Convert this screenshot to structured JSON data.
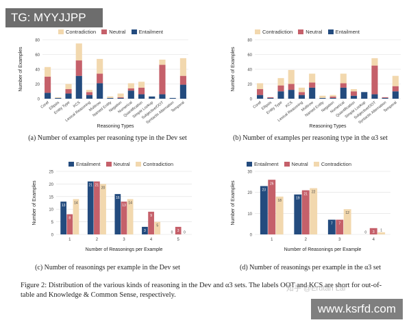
{
  "watermark_top": "TG: MYYJJPP",
  "watermark_bottom": "www.ksrfd.com",
  "credit": "知乎 @Erutan Lai",
  "colors": {
    "entailment": "#234b7e",
    "neutral": "#c5606a",
    "contradiction": "#f2d8ae"
  },
  "figure_caption": "Figure 2: Distribution of the various kinds of reasoning in the Dev and α3 sets. The labels OOT and KCS are short for out-of-table and Knowledge & Common Sense, respectively.",
  "chart_data": [
    {
      "type": "bar",
      "stacked": true,
      "caption": "(a) Number of examples per reasoning type in the Dev set",
      "xlabel": "Reasoning Types",
      "ylabel": "Number of Examples",
      "ylim": [
        0,
        80
      ],
      "yticks": [
        0,
        20,
        40,
        60,
        80
      ],
      "legend": [
        "Contradiction",
        "Neutral",
        "Entailment"
      ],
      "categories": [
        "Coref",
        "Ellipsis",
        "Entity Type",
        "KCS",
        "Lexical Reasoning",
        "Multirow",
        "Named Entity",
        "Negation",
        "Numerical",
        "Quantification",
        "Simple Lookup",
        "Subjective/OOT",
        "Syntactic Alternation",
        "Temporal"
      ],
      "series": [
        {
          "name": "Entailment",
          "values": [
            8,
            1,
            7,
            31,
            5,
            21,
            1,
            1,
            11,
            6,
            3,
            6,
            1,
            19
          ]
        },
        {
          "name": "Neutral",
          "values": [
            22,
            0,
            6,
            21,
            4,
            13,
            0,
            1,
            3,
            9,
            0,
            40,
            0,
            12
          ]
        },
        {
          "name": "Contradiction",
          "values": [
            13,
            1,
            7,
            23,
            3,
            20,
            2,
            5,
            7,
            8,
            0,
            7,
            0,
            24
          ]
        }
      ]
    },
    {
      "type": "bar",
      "stacked": true,
      "caption": "(b) Number of examples per reasoning type in the α3 set",
      "xlabel": "Reasoning Types",
      "ylabel": "Number of Examples",
      "ylim": [
        0,
        80
      ],
      "yticks": [
        0,
        20,
        40,
        60,
        80
      ],
      "legend": [
        "Contradiction",
        "Neutral",
        "Entailment"
      ],
      "categories": [
        "Coref",
        "Ellipsis",
        "Entity Type",
        "KCS",
        "Lexical Reasoning",
        "Multirow",
        "Named Entity",
        "Negation",
        "Numerical",
        "Quantification",
        "Simple Lookup",
        "Subjective/OOT",
        "Syntactic Alternation",
        "Temporal"
      ],
      "series": [
        {
          "name": "Entailment",
          "values": [
            5,
            1,
            10,
            12,
            5,
            15,
            1,
            1,
            15,
            4,
            9,
            6,
            1,
            10
          ]
        },
        {
          "name": "Neutral",
          "values": [
            8,
            1,
            8,
            8,
            4,
            7,
            0,
            2,
            6,
            6,
            0,
            39,
            1,
            7
          ]
        },
        {
          "name": "Contradiction",
          "values": [
            8,
            0,
            10,
            19,
            6,
            12,
            3,
            2,
            13,
            3,
            0,
            10,
            0,
            14
          ]
        }
      ]
    },
    {
      "type": "bar",
      "stacked": false,
      "caption": "(c) Number of reasonings per example in the Dev set",
      "xlabel": "Number of Reasonings per Example",
      "ylabel": "Number of Examples",
      "ylim": [
        0,
        25
      ],
      "yticks": [
        0,
        5,
        10,
        15,
        20,
        25
      ],
      "legend": [
        "Entailment",
        "Neutral",
        "Contradiction"
      ],
      "categories": [
        "1",
        "2",
        "3",
        "4",
        "5"
      ],
      "series": [
        {
          "name": "Entailment",
          "values": [
            13,
            21,
            16,
            3,
            0
          ]
        },
        {
          "name": "Neutral",
          "values": [
            8,
            21,
            13,
            9,
            3
          ]
        },
        {
          "name": "Contradiction",
          "values": [
            14,
            20,
            14,
            5,
            0
          ]
        }
      ]
    },
    {
      "type": "bar",
      "stacked": false,
      "caption": "(d) Number of reasonings per example in the α3 set",
      "xlabel": "Number of Reasonings per Example",
      "ylabel": "Number of Examples",
      "ylim": [
        0,
        30
      ],
      "yticks": [
        0,
        10,
        20,
        30
      ],
      "legend": [
        "Entailment",
        "Neutral",
        "Contradiction"
      ],
      "categories": [
        "1",
        "2",
        "3",
        "4"
      ],
      "series": [
        {
          "name": "Entailment",
          "values": [
            23,
            19,
            7,
            0
          ]
        },
        {
          "name": "Neutral",
          "values": [
            26,
            21,
            7,
            3
          ]
        },
        {
          "name": "Contradiction",
          "values": [
            18,
            22,
            12,
            1
          ]
        }
      ]
    }
  ]
}
